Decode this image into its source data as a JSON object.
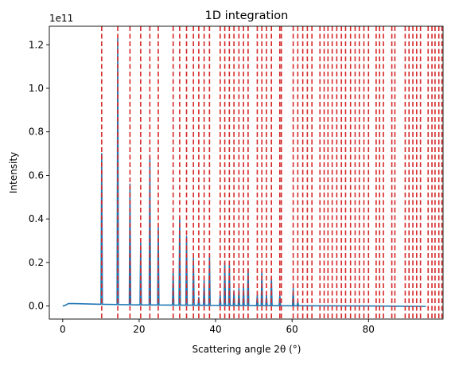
{
  "chart_data": {
    "type": "line",
    "title": "1D integration",
    "xlabel": "Scattering angle 2θ (°)",
    "ylabel": "Intensity",
    "y_offset_label": "1e11",
    "xlim": [
      -3.5,
      99.5
    ],
    "ylim": [
      -0.06,
      1.285
    ],
    "y_scale_factor": "1e11",
    "xticks": [
      0,
      20,
      40,
      60,
      80
    ],
    "yticks": [
      0.0,
      0.2,
      0.4,
      0.6,
      0.8,
      1.0,
      1.2
    ],
    "xtick_labels": [
      "0",
      "20",
      "40",
      "60",
      "80"
    ],
    "ytick_labels": [
      "0.0",
      "0.2",
      "0.4",
      "0.6",
      "0.8",
      "1.0",
      "1.2"
    ],
    "grid": false,
    "series": [
      {
        "color": "#1f77b4",
        "style": "solid",
        "baseline": [
          [
            0,
            0.0
          ],
          [
            0.5,
            0.002
          ],
          [
            1.5,
            0.011
          ],
          [
            3,
            0.011
          ],
          [
            10,
            0.008
          ],
          [
            20,
            0.005
          ],
          [
            40,
            0.003
          ],
          [
            60,
            0.001
          ],
          [
            80,
            0.0
          ],
          [
            95,
            -0.002
          ]
        ],
        "peaks": [
          {
            "x": 10.2,
            "y": 0.7
          },
          {
            "x": 14.4,
            "y": 1.23
          },
          {
            "x": 17.6,
            "y": 0.56
          },
          {
            "x": 20.4,
            "y": 0.29
          },
          {
            "x": 22.8,
            "y": 0.68
          },
          {
            "x": 25.0,
            "y": 0.36
          },
          {
            "x": 28.9,
            "y": 0.17
          },
          {
            "x": 30.6,
            "y": 0.4
          },
          {
            "x": 32.4,
            "y": 0.32
          },
          {
            "x": 34.2,
            "y": 0.22
          },
          {
            "x": 35.6,
            "y": 0.04
          },
          {
            "x": 37.0,
            "y": 0.12
          },
          {
            "x": 38.4,
            "y": 0.23
          },
          {
            "x": 41.2,
            "y": 0.05
          },
          {
            "x": 42.4,
            "y": 0.2
          },
          {
            "x": 43.6,
            "y": 0.19
          },
          {
            "x": 44.8,
            "y": 0.07
          },
          {
            "x": 46.1,
            "y": 0.08
          },
          {
            "x": 47.3,
            "y": 0.09
          },
          {
            "x": 48.5,
            "y": 0.17
          },
          {
            "x": 50.9,
            "y": 0.05
          },
          {
            "x": 52.1,
            "y": 0.16
          },
          {
            "x": 53.3,
            "y": 0.05
          },
          {
            "x": 54.6,
            "y": 0.13
          },
          {
            "x": 56.8,
            "y": 0.05
          },
          {
            "x": 60.3,
            "y": 0.08
          },
          {
            "x": 61.5,
            "y": 0.02
          }
        ]
      }
    ],
    "reference_lines": {
      "color": "#d62728",
      "style": "dashed",
      "x": [
        10.2,
        14.4,
        17.6,
        20.4,
        22.8,
        25.0,
        28.9,
        30.6,
        32.4,
        34.2,
        35.6,
        37.0,
        38.4,
        41.2,
        42.4,
        43.6,
        44.8,
        46.1,
        47.3,
        48.5,
        50.9,
        52.1,
        53.3,
        54.6,
        56.8,
        57.2,
        60.3,
        61.5,
        62.8,
        64.0,
        65.2,
        67.3,
        68.4,
        69.4,
        70.5,
        71.7,
        72.9,
        74.0,
        75.3,
        76.5,
        77.6,
        78.8,
        80.0,
        82.0,
        82.9,
        83.9,
        86.1,
        86.9,
        89.6,
        90.6,
        91.6,
        92.6,
        93.6,
        95.6,
        96.6,
        97.4,
        98.4,
        99.2
      ]
    }
  }
}
